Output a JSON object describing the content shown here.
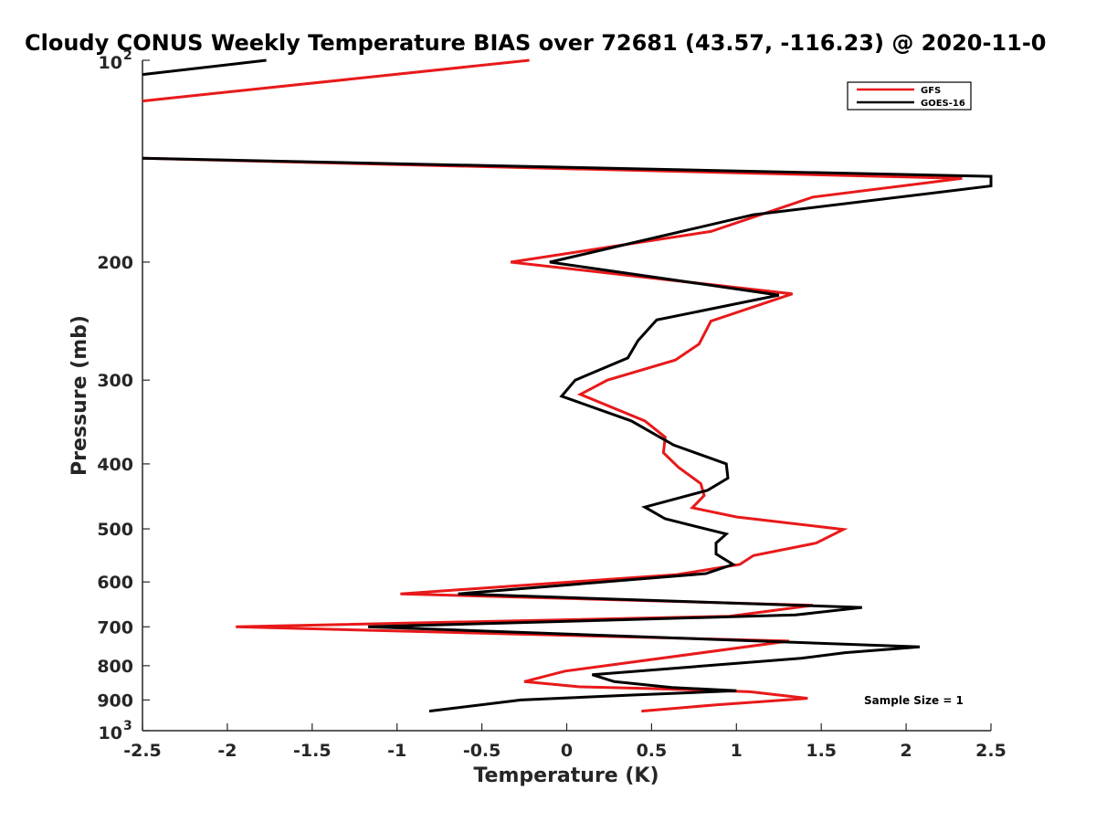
{
  "chart_data": {
    "type": "line",
    "title": "Cloudy CONUS Weekly Temperature BIAS over 72681 (43.57, -116.23) @ 2020-11-0",
    "xlabel": "Temperature (K)",
    "ylabel": "Pressure (mb)",
    "xlim": [
      -2.5,
      2.5
    ],
    "ylim": [
      100,
      1000
    ],
    "y_scale": "log",
    "y_reversed": true,
    "grid": false,
    "legend_position": "top-right",
    "x_ticks": [
      "-2.5",
      "-2",
      "-1.5",
      "-1",
      "-0.5",
      "0",
      "0.5",
      "1",
      "1.5",
      "2",
      "2.5"
    ],
    "y_ticks": [
      {
        "value": 200,
        "label": "200"
      },
      {
        "value": 300,
        "label": "300"
      },
      {
        "value": 400,
        "label": "400"
      },
      {
        "value": 500,
        "label": "500"
      },
      {
        "value": 600,
        "label": "600"
      },
      {
        "value": 700,
        "label": "700"
      },
      {
        "value": 800,
        "label": "800"
      },
      {
        "value": 900,
        "label": "900"
      }
    ],
    "y_decades": [
      {
        "value": 100,
        "base": "10",
        "exp": "2"
      },
      {
        "value": 1000,
        "base": "10",
        "exp": "3"
      }
    ],
    "annotation": "Sample Size = 1",
    "series": [
      {
        "name": "GFS",
        "color": "#e8191a",
        "points": [
          [
            -0.22,
            100
          ],
          [
            -2.5,
            115
          ],
          [
            null,
            null
          ],
          [
            -2.5,
            140
          ],
          [
            2.33,
            150
          ],
          [
            1.45,
            160
          ],
          [
            0.85,
            180
          ],
          [
            -0.33,
            200
          ],
          [
            1.33,
            223
          ],
          [
            0.85,
            245
          ],
          [
            0.78,
            265
          ],
          [
            0.64,
            280
          ],
          [
            0.24,
            300
          ],
          [
            0.08,
            315
          ],
          [
            0.46,
            345
          ],
          [
            0.58,
            365
          ],
          [
            0.57,
            385
          ],
          [
            0.66,
            405
          ],
          [
            0.79,
            428
          ],
          [
            0.81,
            446
          ],
          [
            0.74,
            465
          ],
          [
            1.0,
            480
          ],
          [
            1.63,
            501
          ],
          [
            1.47,
            525
          ],
          [
            1.1,
            548
          ],
          [
            1.02,
            565
          ],
          [
            0.65,
            585
          ],
          [
            -0.98,
            625
          ],
          [
            1.45,
            650
          ],
          [
            0.96,
            675
          ],
          [
            -1.95,
            700
          ],
          [
            1.31,
            735
          ],
          [
            -0.01,
            815
          ],
          [
            -0.25,
            845
          ],
          [
            0.07,
            860
          ],
          [
            0.47,
            865
          ],
          [
            1.08,
            875
          ],
          [
            1.42,
            895
          ],
          [
            0.88,
            915
          ],
          [
            0.44,
            935
          ]
        ]
      },
      {
        "name": "GOES-16",
        "color": "#000000",
        "points": [
          [
            -1.77,
            100
          ],
          [
            -2.5,
            105
          ],
          [
            null,
            null
          ],
          [
            -2.5,
            140
          ],
          [
            2.5,
            149
          ],
          [
            2.5,
            154
          ],
          [
            1.1,
            170
          ],
          [
            -0.1,
            200
          ],
          [
            1.25,
            224
          ],
          [
            0.53,
            244
          ],
          [
            0.42,
            262
          ],
          [
            0.36,
            278
          ],
          [
            0.05,
            300
          ],
          [
            -0.03,
            317
          ],
          [
            0.38,
            345
          ],
          [
            0.63,
            375
          ],
          [
            0.94,
            400
          ],
          [
            0.95,
            420
          ],
          [
            0.83,
            438
          ],
          [
            0.46,
            464
          ],
          [
            0.58,
            483
          ],
          [
            0.94,
            509
          ],
          [
            0.88,
            525
          ],
          [
            0.88,
            545
          ],
          [
            0.98,
            565
          ],
          [
            0.82,
            583
          ],
          [
            -0.64,
            625
          ],
          [
            1.74,
            655
          ],
          [
            1.35,
            672
          ],
          [
            -1.17,
            700
          ],
          [
            2.08,
            750
          ],
          [
            1.64,
            765
          ],
          [
            1.38,
            780
          ],
          [
            0.15,
            825
          ],
          [
            0.28,
            845
          ],
          [
            0.62,
            862
          ],
          [
            1.0,
            872
          ],
          [
            0.37,
            885
          ],
          [
            -0.27,
            900
          ],
          [
            -0.81,
            935
          ]
        ]
      }
    ]
  }
}
